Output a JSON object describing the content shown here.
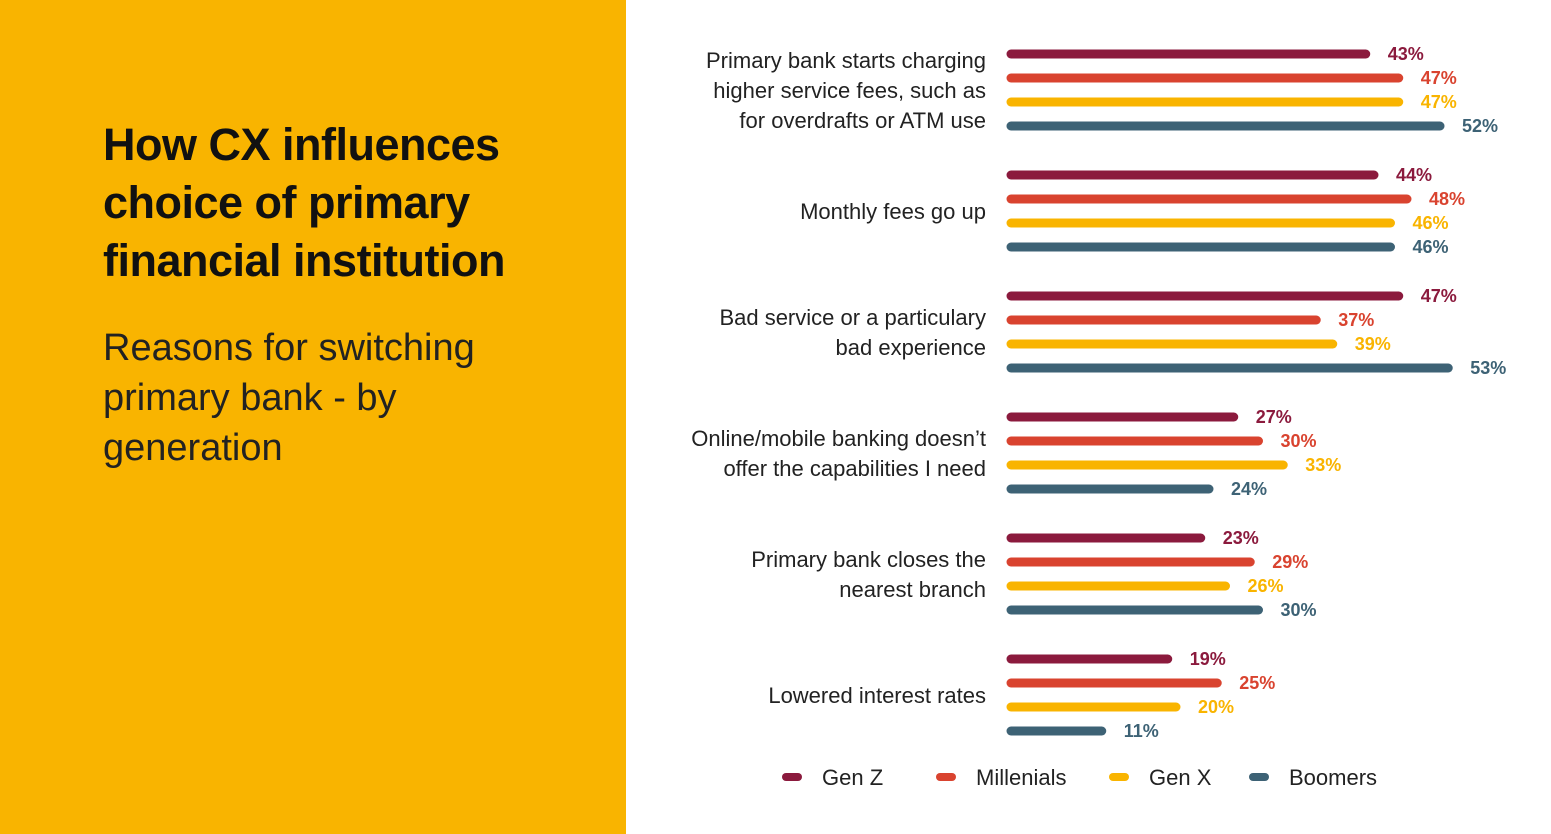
{
  "title": "How CX influences choice of primary financial institution",
  "subtitle": "Reasons for switching primary bank - by generation",
  "colors": {
    "panel": "#F9B400",
    "series": [
      "#8B1A3D",
      "#D9432F",
      "#F9B400",
      "#3D6275"
    ]
  },
  "chart_data": {
    "type": "bar",
    "orientation": "horizontal",
    "value_suffix": "%",
    "categories": [
      [
        "Primary bank starts charging",
        "higher service fees, such as",
        "for overdrafts or ATM use"
      ],
      [
        "Monthly fees go up"
      ],
      [
        "Bad service or a particulary",
        "bad experience"
      ],
      [
        "Online/mobile banking doesn’t",
        "offer the capabilities I need"
      ],
      [
        "Primary bank closes the",
        "nearest branch"
      ],
      [
        "Lowered interest rates"
      ]
    ],
    "series": [
      {
        "name": "Gen Z",
        "values": [
          43,
          44,
          47,
          27,
          23,
          19
        ]
      },
      {
        "name": "Millenials",
        "values": [
          47,
          48,
          37,
          30,
          29,
          25
        ]
      },
      {
        "name": "Gen X",
        "values": [
          47,
          46,
          39,
          33,
          26,
          20
        ]
      },
      {
        "name": "Boomers",
        "values": [
          52,
          46,
          53,
          24,
          30,
          11
        ]
      }
    ],
    "legend_position": "bottom",
    "grid": false
  }
}
